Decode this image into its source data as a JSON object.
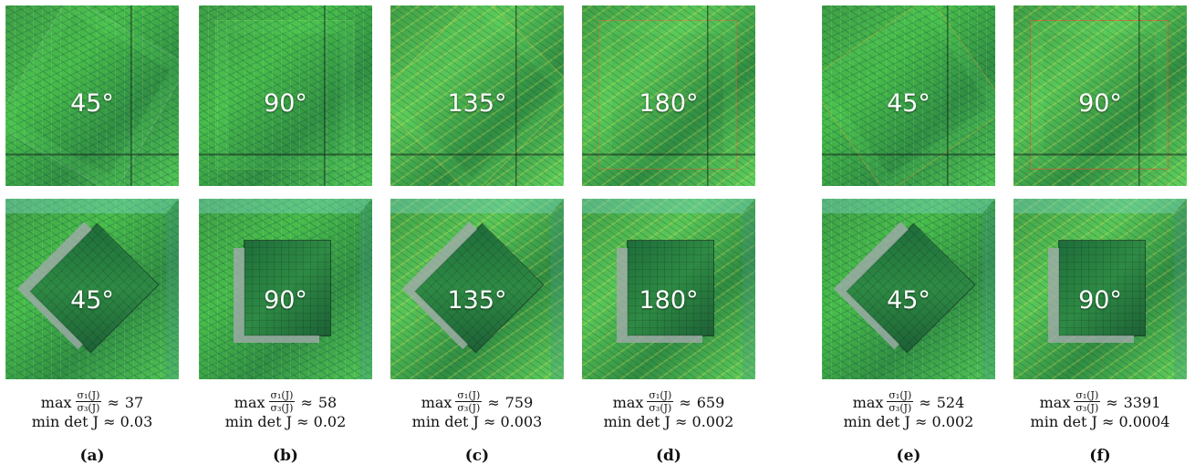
{
  "panels": [
    {
      "id": "a",
      "label": "(a)",
      "top_angle": "45°",
      "bottom_angle": "45°",
      "max_prefix": "max",
      "ratio_num": "σ₁(J)",
      "ratio_den": "σ₃(J)",
      "approx": "≈",
      "max_value": "37",
      "min_label": "min det J ≈ 0.03"
    },
    {
      "id": "b",
      "label": "(b)",
      "top_angle": "90°",
      "bottom_angle": "90°",
      "max_prefix": "max",
      "ratio_num": "σ₁(J)",
      "ratio_den": "σ₃(J)",
      "approx": "≈",
      "max_value": "58",
      "min_label": "min det J ≈ 0.02"
    },
    {
      "id": "c",
      "label": "(c)",
      "top_angle": "135°",
      "bottom_angle": "135°",
      "max_prefix": "max",
      "ratio_num": "σ₁(J)",
      "ratio_den": "σ₃(J)",
      "approx": "≈",
      "max_value": "759",
      "min_label": "min det J ≈ 0.003"
    },
    {
      "id": "d",
      "label": "(d)",
      "top_angle": "180°",
      "bottom_angle": "180°",
      "max_prefix": "max",
      "ratio_num": "σ₁(J)",
      "ratio_den": "σ₃(J)",
      "approx": "≈",
      "max_value": "659",
      "min_label": "min det J ≈ 0.002"
    },
    {
      "id": "e",
      "label": "(e)",
      "top_angle": "45°",
      "bottom_angle": "45°",
      "max_prefix": "max",
      "ratio_num": "σ₁(J)",
      "ratio_den": "σ₃(J)",
      "approx": "≈",
      "max_value": "524",
      "min_label": "min det J ≈ 0.002"
    },
    {
      "id": "f",
      "label": "(f)",
      "top_angle": "90°",
      "bottom_angle": "90°",
      "max_prefix": "max",
      "ratio_num": "σ₁(J)",
      "ratio_den": "σ₃(J)",
      "approx": "≈",
      "max_value": "3391",
      "min_label": "min det J ≈ 0.0004"
    }
  ],
  "colors": {
    "mesh_green": "#48bd4a",
    "edge_blue": "#3a6f86",
    "distortion_yellow": "#f2e64d",
    "distortion_red": "#e64031",
    "label_white": "#ffffff",
    "caption_black": "#111111"
  }
}
